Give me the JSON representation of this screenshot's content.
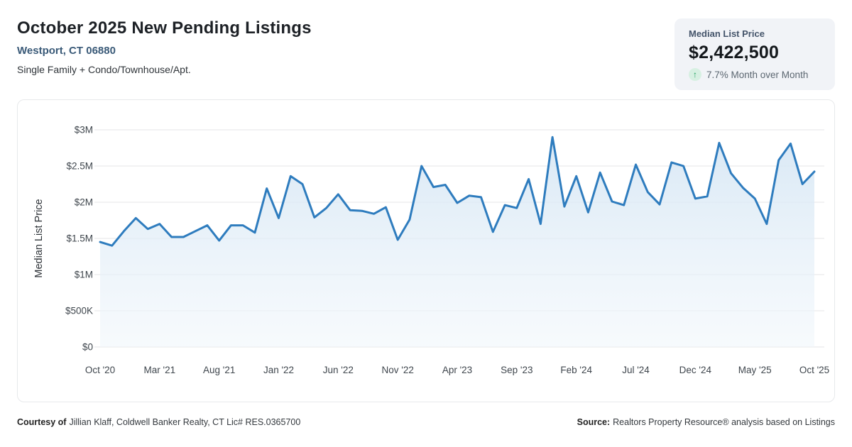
{
  "header": {
    "title": "October 2025 New Pending Listings",
    "location": "Westport, CT 06880",
    "subtitle": "Single Family + Condo/Townhouse/Apt."
  },
  "stat_card": {
    "label": "Median List Price",
    "value": "$2,422,500",
    "change_icon": "up-arrow-icon",
    "change_arrow": "↑",
    "change_text": "7.7% Month over Month",
    "accent_color": "#1fa15f",
    "badge_bg": "#d7f0e2",
    "card_bg": "#f1f3f7"
  },
  "footer": {
    "courtesy_label": "Courtesy of",
    "courtesy_text": "Jillian Klaff, Coldwell Banker Realty, CT Lic# RES.0365700",
    "source_label": "Source:",
    "source_text": "Realtors Property Resource® analysis based on Listings"
  },
  "chart_data": {
    "type": "area",
    "title": "",
    "xlabel": "",
    "ylabel": "Median List Price",
    "ylim": [
      0,
      3
    ],
    "grid": true,
    "line_color": "#2e7cbe",
    "fill_top_color": "#d5e6f4",
    "fill_bottom_color": "#f0f6fb",
    "grid_color": "#e9eaec",
    "tick_color": "#3f464d",
    "unit": "millions USD",
    "x": [
      "Oct '20",
      "Nov '20",
      "Dec '20",
      "Jan '21",
      "Feb '21",
      "Mar '21",
      "Apr '21",
      "May '21",
      "Jun '21",
      "Jul '21",
      "Aug '21",
      "Sep '21",
      "Oct '21",
      "Nov '21",
      "Dec '21",
      "Jan '22",
      "Feb '22",
      "Mar '22",
      "Apr '22",
      "May '22",
      "Jun '22",
      "Jul '22",
      "Aug '22",
      "Sep '22",
      "Oct '22",
      "Nov '22",
      "Dec '22",
      "Jan '23",
      "Feb '23",
      "Mar '23",
      "Apr '23",
      "May '23",
      "Jun '23",
      "Jul '23",
      "Aug '23",
      "Sep '23",
      "Oct '23",
      "Nov '23",
      "Dec '23",
      "Jan '24",
      "Feb '24",
      "Mar '24",
      "Apr '24",
      "May '24",
      "Jun '24",
      "Jul '24",
      "Aug '24",
      "Sep '24",
      "Oct '24",
      "Nov '24",
      "Dec '24",
      "Jan '25",
      "Feb '25",
      "Mar '25",
      "Apr '25",
      "May '25",
      "Jun '25",
      "Jul '25",
      "Aug '25",
      "Sep '25",
      "Oct '25"
    ],
    "values": [
      1.45,
      1.4,
      1.6,
      1.78,
      1.63,
      1.7,
      1.52,
      1.52,
      1.6,
      1.68,
      1.47,
      1.68,
      1.68,
      1.58,
      2.19,
      1.78,
      2.36,
      2.25,
      1.79,
      1.92,
      2.11,
      1.89,
      1.88,
      1.84,
      1.93,
      1.48,
      1.76,
      2.5,
      2.21,
      2.24,
      1.99,
      2.09,
      2.07,
      1.59,
      1.96,
      1.92,
      2.32,
      1.7,
      2.9,
      1.94,
      2.36,
      1.86,
      2.41,
      2.01,
      1.96,
      2.52,
      2.14,
      1.97,
      2.55,
      2.5,
      2.05,
      2.08,
      2.82,
      2.4,
      2.2,
      2.05,
      1.7,
      2.58,
      2.81,
      2.25,
      2.4225
    ],
    "x_tick_every": 5,
    "x_tick_labels": [
      "Oct '20",
      "Mar '21",
      "Aug '21",
      "Jan '22",
      "Jun '22",
      "Nov '22",
      "Apr '23",
      "Sep '23",
      "Feb '24",
      "Jul '24",
      "Dec '24",
      "May '25",
      "Oct '25"
    ],
    "y_ticks": [
      0,
      0.5,
      1,
      1.5,
      2,
      2.5,
      3
    ],
    "y_tick_labels": [
      "$0",
      "$500K",
      "$1M",
      "$1.5M",
      "$2M",
      "$2.5M",
      "$3M"
    ],
    "legend": null
  }
}
